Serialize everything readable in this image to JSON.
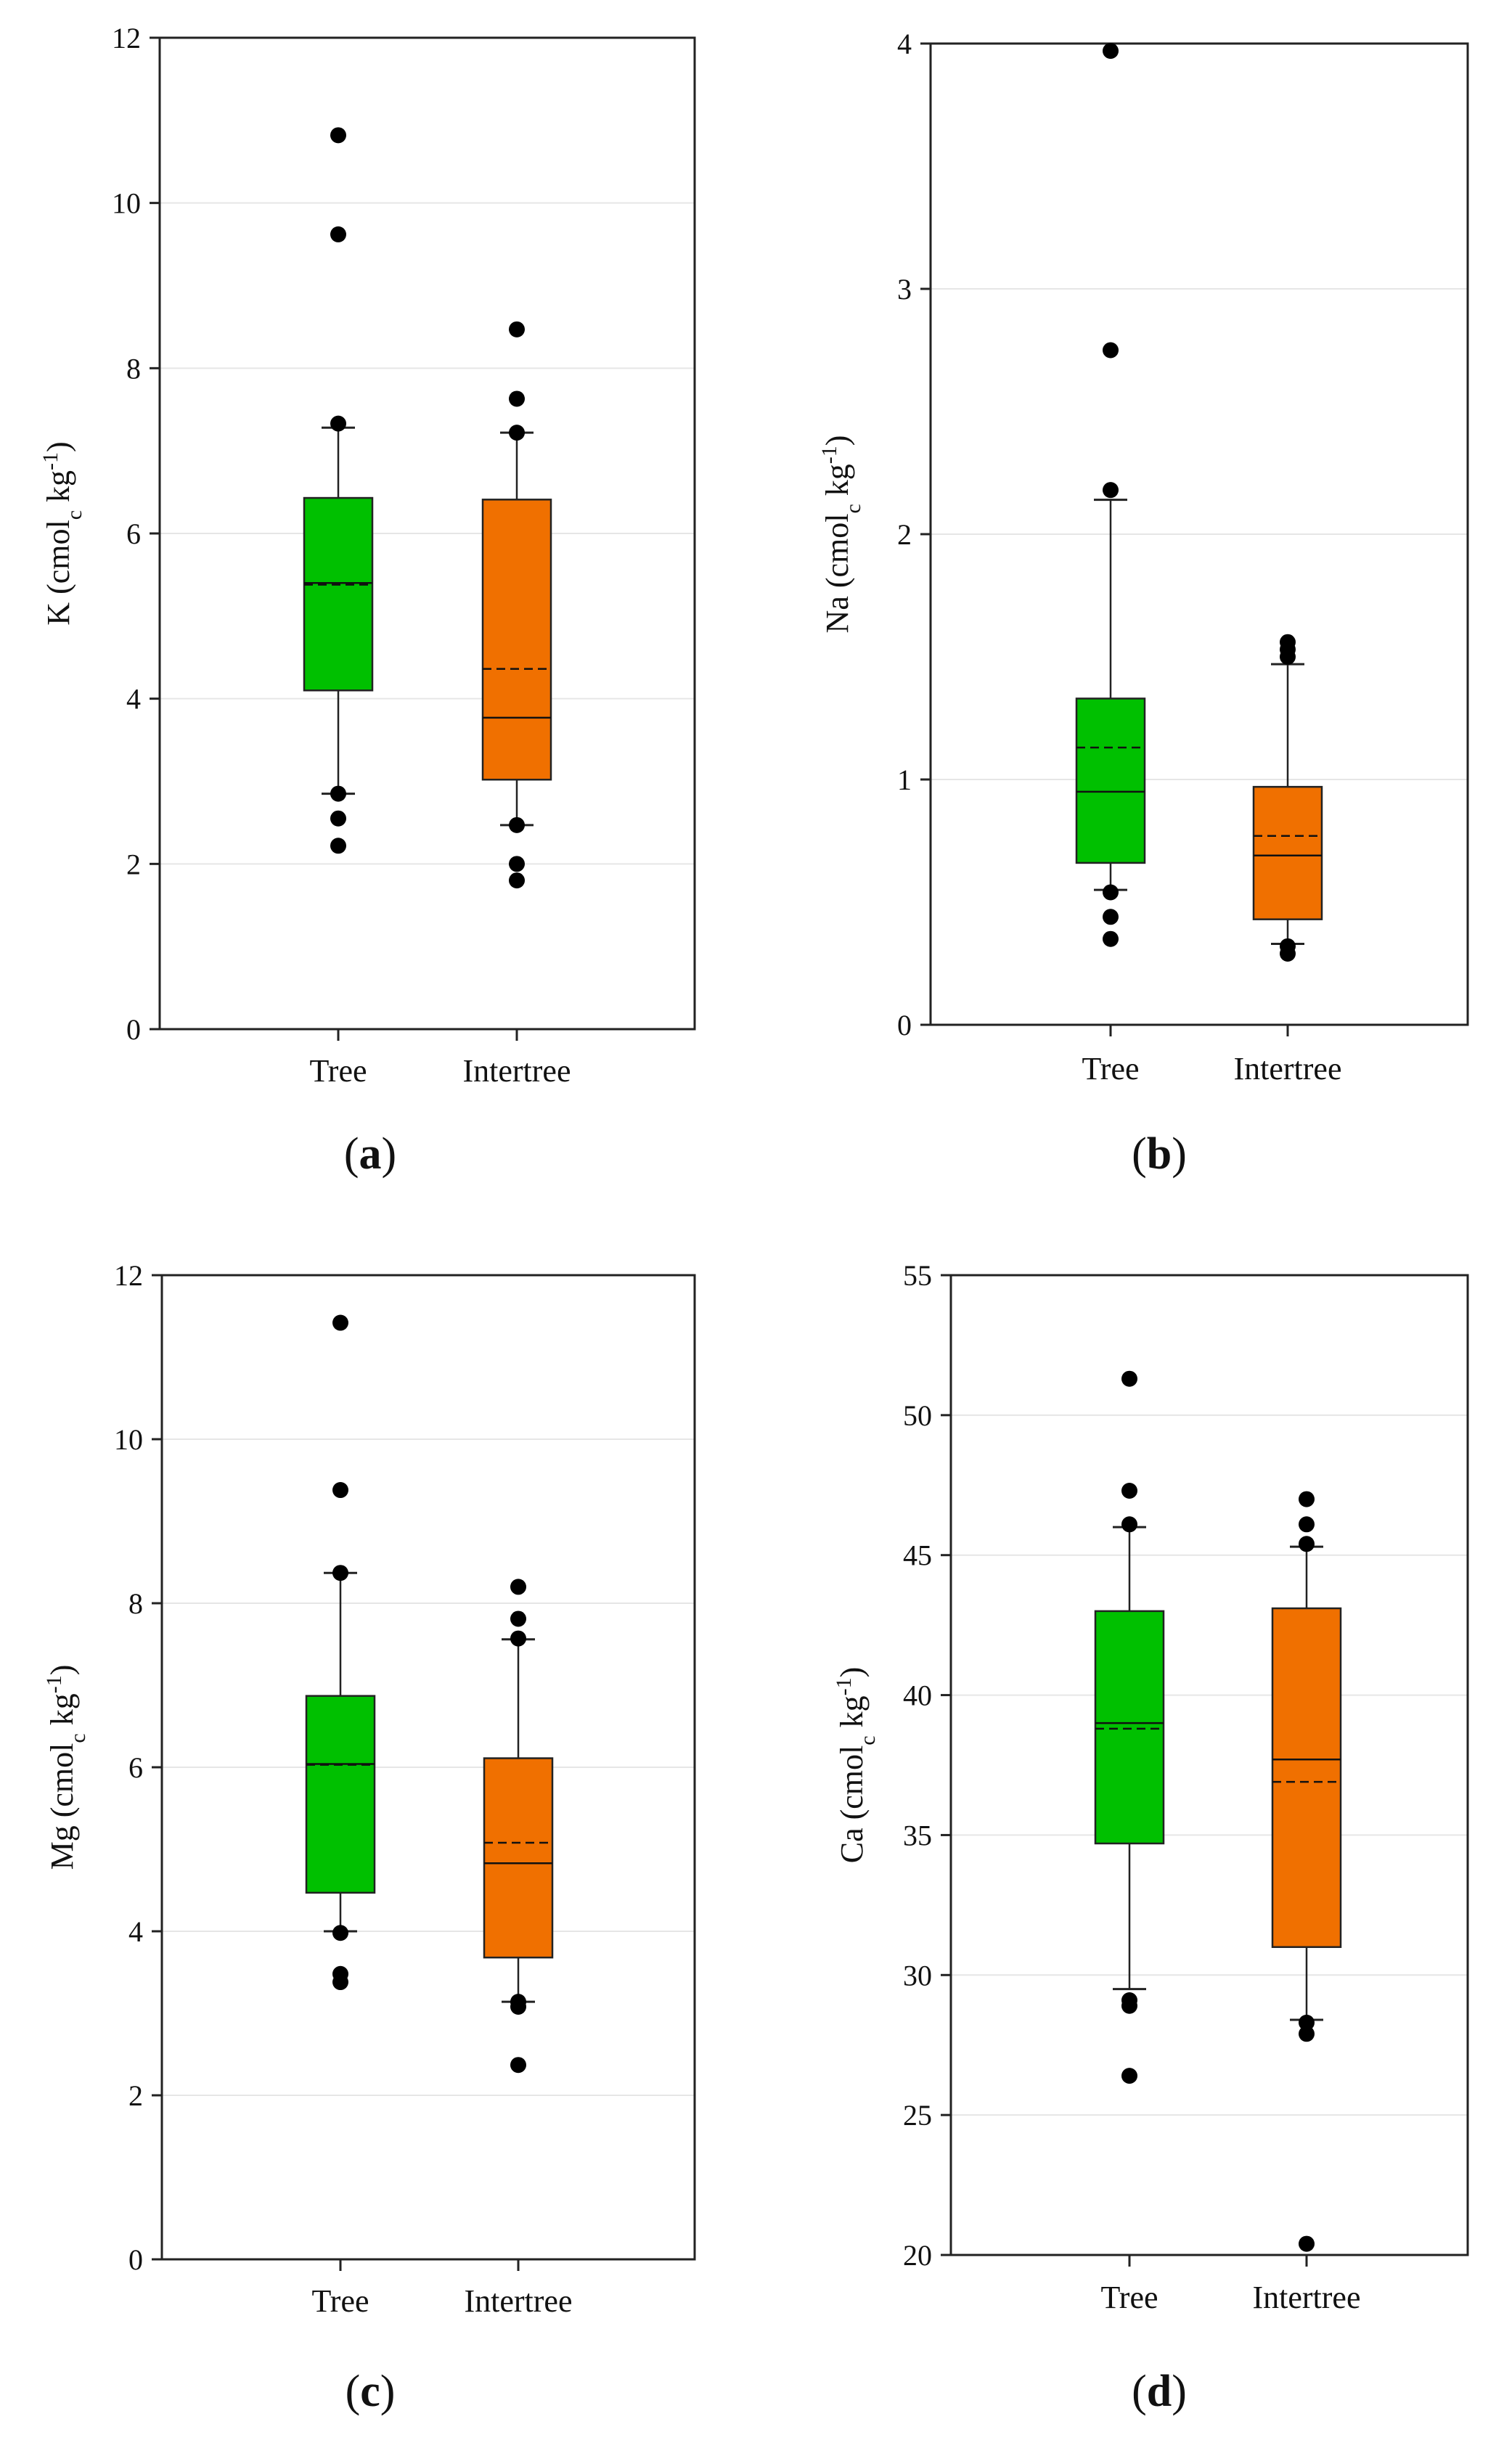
{
  "colors": {
    "tree": "#00c000",
    "intertree": "#f07000",
    "grid": "#e6e6e6",
    "axis": "#222222",
    "point": "#000000"
  },
  "chart_data": [
    {
      "type": "boxplot",
      "panel_label": "a",
      "ylabel": {
        "base": "K (cmol",
        "sub": "c",
        "mid": " kg",
        "sup": "-1",
        "end": ")"
      },
      "ylim": [
        0,
        12
      ],
      "yticks": [
        0,
        2,
        4,
        6,
        8,
        10,
        12
      ],
      "ytick_labels": [
        "0",
        "2",
        "4",
        "6",
        "8",
        "10",
        "12"
      ],
      "grid": true,
      "categories": [
        "Tree",
        "Intertree"
      ],
      "series": [
        {
          "name": "Tree",
          "whisker_low": 2.85,
          "q1": 4.1,
          "median": 5.4,
          "mean": 5.38,
          "q3": 6.43,
          "whisker_high": 7.28,
          "outliers": [
            2.22,
            2.55,
            2.85,
            7.33,
            9.62,
            10.82
          ]
        },
        {
          "name": "Intertree",
          "whisker_low": 2.47,
          "q1": 3.02,
          "median": 3.77,
          "mean": 4.36,
          "q3": 6.41,
          "whisker_high": 7.22,
          "outliers": [
            1.8,
            2.0,
            2.47,
            7.22,
            7.63,
            8.47
          ]
        }
      ]
    },
    {
      "type": "boxplot",
      "panel_label": "b",
      "ylabel": {
        "base": "Na (cmol",
        "sub": "c",
        "mid": " kg",
        "sup": "-1",
        "end": ")"
      },
      "ylim": [
        0,
        4
      ],
      "yticks": [
        0,
        1,
        2,
        3,
        4
      ],
      "ytick_labels": [
        "0",
        "1",
        "2",
        "3",
        "4"
      ],
      "grid": true,
      "categories": [
        "Tree",
        "Intertree"
      ],
      "series": [
        {
          "name": "Tree",
          "whisker_low": 0.55,
          "q1": 0.66,
          "median": 0.95,
          "mean": 1.13,
          "q3": 1.33,
          "whisker_high": 2.14,
          "outliers": [
            0.35,
            0.44,
            0.54,
            2.18,
            2.75,
            3.97
          ]
        },
        {
          "name": "Intertree",
          "whisker_low": 0.33,
          "q1": 0.43,
          "median": 0.69,
          "mean": 0.77,
          "q3": 0.97,
          "whisker_high": 1.47,
          "outliers": [
            0.29,
            0.32,
            1.5,
            1.53,
            1.56
          ]
        }
      ]
    },
    {
      "type": "boxplot",
      "panel_label": "c",
      "ylabel": {
        "base": "Mg (cmol",
        "sub": "c",
        "mid": " kg",
        "sup": "-1",
        "end": ")"
      },
      "ylim": [
        0,
        12
      ],
      "yticks": [
        0,
        2,
        4,
        6,
        8,
        10,
        12
      ],
      "ytick_labels": [
        "0",
        "2",
        "4",
        "6",
        "8",
        "10",
        "12"
      ],
      "grid": true,
      "categories": [
        "Tree",
        "Intertree"
      ],
      "series": [
        {
          "name": "Tree",
          "whisker_low": 4.0,
          "q1": 4.47,
          "median": 6.04,
          "mean": 6.03,
          "q3": 6.87,
          "whisker_high": 8.37,
          "outliers": [
            3.38,
            3.48,
            3.98,
            8.37,
            9.38,
            11.42
          ]
        },
        {
          "name": "Intertree",
          "whisker_low": 3.14,
          "q1": 3.68,
          "median": 4.83,
          "mean": 5.08,
          "q3": 6.11,
          "whisker_high": 7.56,
          "outliers": [
            2.37,
            3.08,
            3.14,
            7.57,
            7.81,
            8.2
          ]
        }
      ]
    },
    {
      "type": "boxplot",
      "panel_label": "d",
      "ylabel": {
        "base": "Ca (cmol",
        "sub": "c",
        "mid": " kg",
        "sup": "-1",
        "end": ")"
      },
      "ylim": [
        20,
        55
      ],
      "yticks": [
        20,
        25,
        30,
        35,
        40,
        45,
        50,
        55
      ],
      "ytick_labels": [
        "20",
        "25",
        "30",
        "35",
        "40",
        "45",
        "50",
        "55"
      ],
      "grid": true,
      "categories": [
        "Tree",
        "Intertree"
      ],
      "series": [
        {
          "name": "Tree",
          "whisker_low": 29.5,
          "q1": 34.7,
          "median": 39.0,
          "mean": 38.8,
          "q3": 43.0,
          "whisker_high": 46.0,
          "outliers": [
            26.4,
            28.9,
            29.1,
            46.1,
            47.3,
            51.3
          ]
        },
        {
          "name": "Intertree",
          "whisker_low": 28.4,
          "q1": 31.0,
          "median": 37.7,
          "mean": 36.9,
          "q3": 43.1,
          "whisker_high": 45.3,
          "outliers": [
            20.4,
            27.9,
            28.3,
            45.4,
            46.1,
            47.0
          ]
        }
      ]
    }
  ]
}
